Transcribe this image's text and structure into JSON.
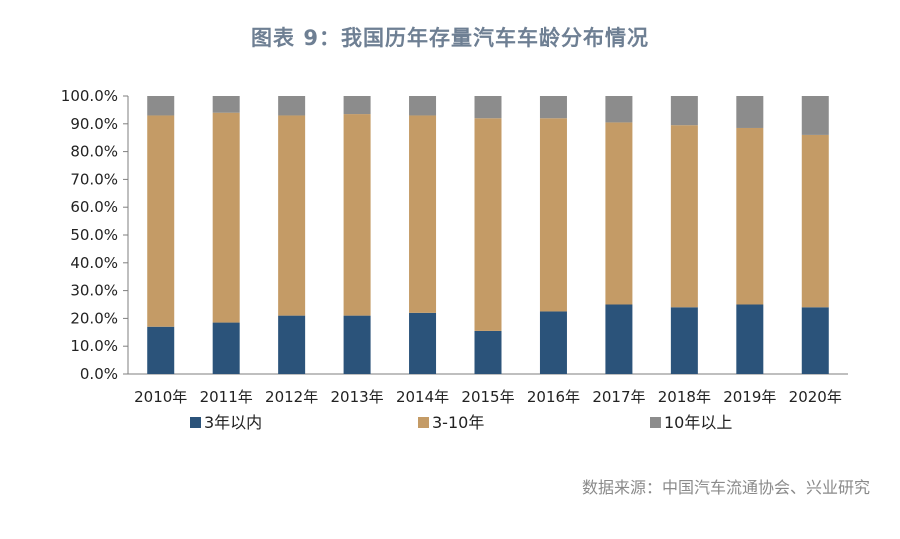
{
  "title": "图表 9：我国历年存量汽车车龄分布情况",
  "source": "数据来源：中国汽车流通协会、兴业研究",
  "chart_data": {
    "type": "bar",
    "stacked": true,
    "categories": [
      "2010年",
      "2011年",
      "2012年",
      "2013年",
      "2014年",
      "2015年",
      "2016年",
      "2017年",
      "2018年",
      "2019年",
      "2020年"
    ],
    "series": [
      {
        "name": "3年以内",
        "color": "#2b537a",
        "values": [
          17,
          18.5,
          21,
          21,
          22,
          15.5,
          22.5,
          25,
          24,
          25,
          24
        ]
      },
      {
        "name": "3-10年",
        "color": "#c49b66",
        "values": [
          76,
          75.5,
          72,
          72.5,
          71,
          76.5,
          69.5,
          65.5,
          65.5,
          63.5,
          62
        ]
      },
      {
        "name": "10年以上",
        "color": "#8c8c8c",
        "values": [
          7,
          6,
          7,
          6.5,
          7,
          8,
          8,
          9.5,
          10.5,
          11.5,
          14
        ]
      }
    ],
    "ylim": [
      0,
      100
    ],
    "yticks": [
      "0.0%",
      "10.0%",
      "20.0%",
      "30.0%",
      "40.0%",
      "50.0%",
      "60.0%",
      "70.0%",
      "80.0%",
      "90.0%",
      "100.0%"
    ],
    "grid": false,
    "legend_position": "bottom"
  }
}
